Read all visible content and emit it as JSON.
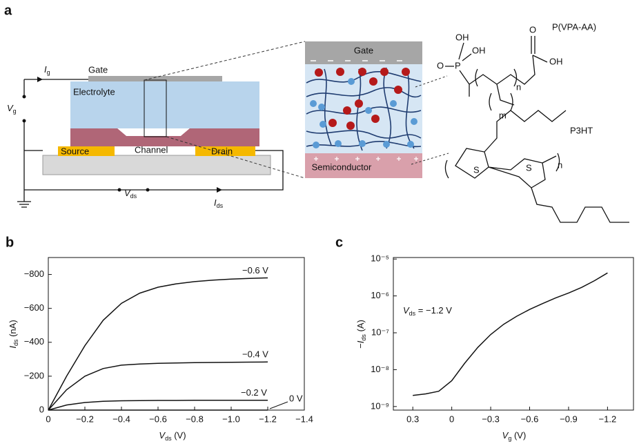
{
  "panel_a": {
    "label": "a",
    "device": {
      "gate": "Gate",
      "electrolyte": "Electrolyte",
      "source": "Source",
      "channel": "Channel",
      "drain": "Drain",
      "ig": {
        "symbol": "I",
        "sub": "g"
      },
      "vg": {
        "symbol": "V",
        "sub": "g"
      },
      "vds": {
        "symbol": "V",
        "sub": "ds"
      },
      "ids": {
        "symbol": "I",
        "sub": "ds"
      }
    },
    "inset": {
      "gate": "Gate",
      "semiconductor": "Semiconductor"
    },
    "chemistry": {
      "pvpaa": {
        "name": "P(VPA-AA)",
        "atoms": [
          "OH",
          "OH",
          "O",
          "P",
          "O",
          "OH",
          "n",
          "m"
        ]
      },
      "p3ht": {
        "name": "P3HT",
        "atoms": [
          "S",
          "S",
          "n"
        ]
      }
    }
  },
  "chart_data": [
    {
      "panel": "b",
      "type": "line",
      "x": [
        0,
        -0.1,
        -0.2,
        -0.3,
        -0.4,
        -0.5,
        -0.6,
        -0.7,
        -0.8,
        -0.9,
        -1.0,
        -1.1,
        -1.2
      ],
      "xlim": [
        0,
        -1.4
      ],
      "xticks": [
        0,
        {
          "value": -0.2,
          "label": "−0.2"
        },
        {
          "value": -0.4,
          "label": "−0.4"
        },
        {
          "value": -0.6,
          "label": "−0.6"
        },
        {
          "value": -0.8,
          "label": "−0.8"
        },
        {
          "value": -1.0,
          "label": "−1.0"
        },
        {
          "value": -1.2,
          "label": "−1.2"
        },
        {
          "value": -1.4,
          "label": "−1.4"
        }
      ],
      "ylim": [
        0,
        -900
      ],
      "yticks": [
        0,
        {
          "value": -200,
          "label": "−200"
        },
        {
          "value": -400,
          "label": "−400"
        },
        {
          "value": -600,
          "label": "−600"
        },
        {
          "value": -800,
          "label": "−800"
        }
      ],
      "x_label": {
        "symbol": "V",
        "sub": "ds",
        "unit": " (V)"
      },
      "y_label": {
        "symbol": "I",
        "sub": "ds",
        "unit": " (nA)"
      },
      "series": [
        {
          "name": "−0.6 V",
          "color": "#111111",
          "values": [
            0,
            -200,
            -380,
            -530,
            -630,
            -690,
            -725,
            -745,
            -758,
            -767,
            -773,
            -777,
            -780
          ]
        },
        {
          "name": "−0.4 V",
          "color": "#111111",
          "values": [
            0,
            -120,
            -200,
            -245,
            -265,
            -272,
            -276,
            -278,
            -280,
            -281,
            -282,
            -283,
            -284
          ]
        },
        {
          "name": "−0.2 V",
          "color": "#111111",
          "values": [
            0,
            -30,
            -45,
            -52,
            -55,
            -56,
            -57,
            -57,
            -58,
            -58,
            -58,
            -58,
            -58
          ]
        },
        {
          "name": "0 V",
          "color": "#111111",
          "values": [
            0,
            0,
            0,
            0,
            0,
            0,
            0,
            0,
            0,
            0,
            0,
            0,
            0
          ]
        }
      ]
    },
    {
      "panel": "c",
      "type": "line",
      "log_y": true,
      "x": [
        0.3,
        0.2,
        0.1,
        0,
        -0.1,
        -0.2,
        -0.3,
        -0.4,
        -0.5,
        -0.6,
        -0.7,
        -0.8,
        -0.9,
        -1.0,
        -1.1,
        -1.2
      ],
      "xlim": [
        0.45,
        -1.4
      ],
      "xticks": [
        0.3,
        0,
        {
          "value": -0.3,
          "label": "−0.3"
        },
        {
          "value": -0.6,
          "label": "−0.6"
        },
        {
          "value": -0.9,
          "label": "−0.9"
        },
        {
          "value": -1.2,
          "label": "−1.2"
        }
      ],
      "ylim": [
        8e-10,
        1.1e-05
      ],
      "yticks": [
        {
          "value": 1e-09,
          "label": "10⁻⁹"
        },
        {
          "value": 1e-08,
          "label": "10⁻⁸"
        },
        {
          "value": 1e-07,
          "label": "10⁻⁷"
        },
        {
          "value": 1e-06,
          "label": "10⁻⁶"
        },
        {
          "value": 1e-05,
          "label": "10⁻⁵"
        }
      ],
      "x_label": {
        "symbol": "V",
        "sub": "g",
        "unit": " (V)"
      },
      "y_label": {
        "symbol": "−I",
        "sub": "ds",
        "unit": " (A)"
      },
      "annotation": {
        "symbol": "V",
        "sub": "ds",
        "rest": " = −1.2 V"
      },
      "series": [
        {
          "name": "−I_ds",
          "color": "#111111",
          "values": [
            2e-09,
            2.2e-09,
            2.6e-09,
            5e-09,
            1.5e-08,
            4e-08,
            9e-08,
            1.7e-07,
            2.8e-07,
            4.3e-07,
            6.2e-07,
            8.8e-07,
            1.2e-06,
            1.7e-06,
            2.6e-06,
            4.2e-06
          ]
        }
      ]
    }
  ]
}
